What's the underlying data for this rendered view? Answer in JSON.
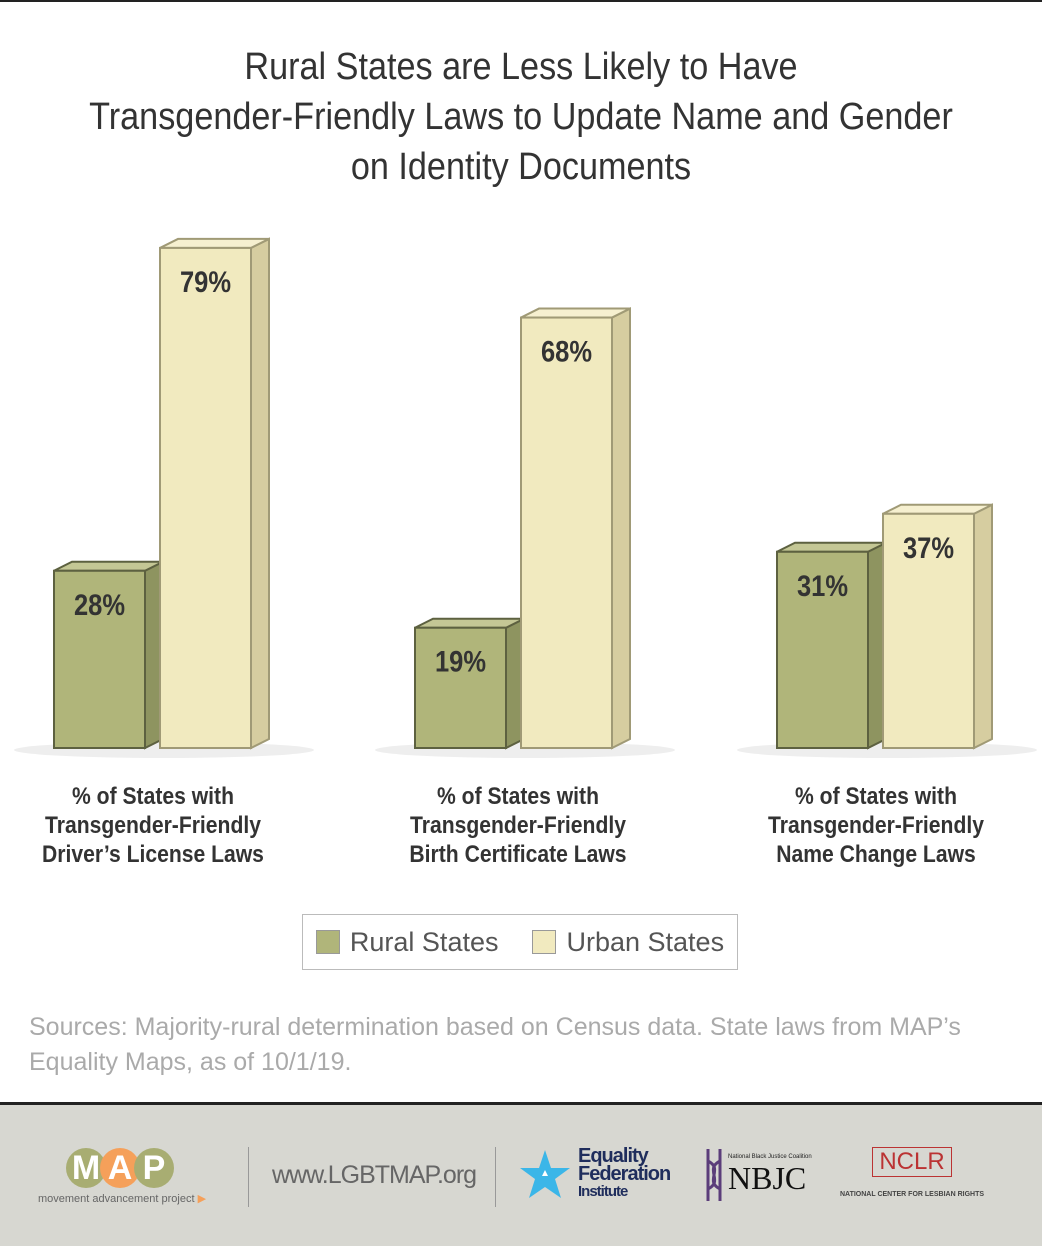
{
  "chart_data": {
    "type": "bar",
    "title": "Rural States are Less Likely to Have Transgender-Friendly Laws to Update Name and Gender on Identity Documents",
    "title_lines": [
      "Rural States are Less Likely to Have",
      "Transgender-Friendly Laws to Update Name and Gender",
      "on Identity Documents"
    ],
    "categories": [
      [
        "% of States with",
        "Transgender-Friendly",
        "Driver’s License Laws"
      ],
      [
        "% of States with",
        "Transgender-Friendly",
        "Birth Certificate Laws"
      ],
      [
        "% of States with",
        "Transgender-Friendly",
        "Name Change Laws"
      ]
    ],
    "series": [
      {
        "name": "Rural States",
        "values": [
          28,
          19,
          31
        ],
        "labels": [
          "28%",
          "19%",
          "31%"
        ],
        "color": "#b0b57a"
      },
      {
        "name": "Urban States",
        "values": [
          79,
          68,
          37
        ],
        "labels": [
          "79%",
          "68%",
          "37%"
        ],
        "color": "#f1eabf"
      }
    ],
    "ylim": [
      0,
      100
    ],
    "legend": "bottom-center",
    "grid": false
  },
  "sources": "Sources: Majority-rural determination based on Census data. State laws from MAP’s Equality Maps, as of 10/1/19.",
  "footer": {
    "map_letters": [
      "M",
      "A",
      "P"
    ],
    "map_sub": "movement advancement project",
    "url": "www.LGBTMAP.org",
    "efi": [
      "Equality",
      "Federation",
      "Institute"
    ],
    "nbjc": "NBJC",
    "nbjc_sub": "National Black Justice Coalition",
    "nclr": "NCLR",
    "nclr_sub": "NATIONAL CENTER FOR LESBIAN RIGHTS"
  }
}
